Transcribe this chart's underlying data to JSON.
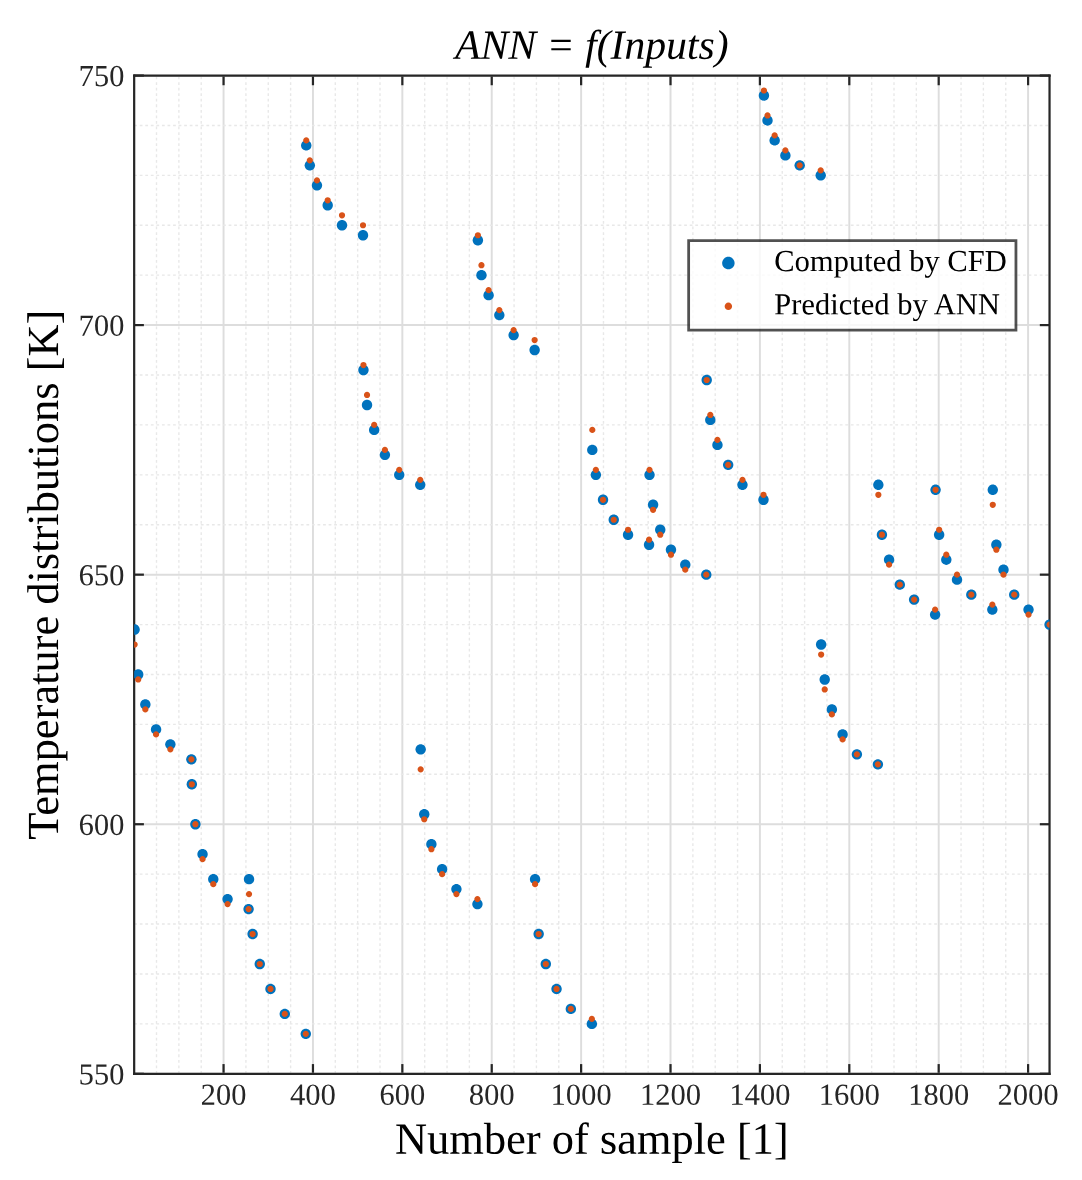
{
  "chart_data": {
    "type": "scatter",
    "title": "ANN = f(Inputs)",
    "xlabel": "Number of sample [1]",
    "ylabel": "Temperature distributions [K]",
    "x": [
      1,
      9,
      25,
      49,
      81,
      128,
      129,
      137,
      153,
      177,
      209,
      256,
      257,
      265,
      281,
      305,
      337,
      384,
      385,
      393,
      409,
      433,
      465,
      512,
      513,
      521,
      537,
      561,
      593,
      640,
      641,
      649,
      665,
      689,
      721,
      768,
      769,
      777,
      793,
      817,
      849,
      896,
      897,
      905,
      921,
      945,
      977,
      1024,
      1025,
      1033,
      1049,
      1073,
      1105,
      1152,
      1153,
      1161,
      1177,
      1201,
      1233,
      1280,
      1281,
      1289,
      1305,
      1329,
      1361,
      1408,
      1409,
      1417,
      1433,
      1457,
      1489,
      1536,
      1537,
      1545,
      1561,
      1585,
      1617,
      1664,
      1665,
      1673,
      1689,
      1713,
      1745,
      1792,
      1793,
      1801,
      1817,
      1841,
      1873,
      1920,
      1921,
      1929,
      1945,
      1969,
      2001,
      2048
    ],
    "series": [
      {
        "name": "Computed by CFD",
        "color": "#0072bd",
        "marker": "circle",
        "values": [
          639,
          630,
          624,
          619,
          616,
          613,
          608,
          600,
          594,
          589,
          585,
          583,
          589,
          578,
          572,
          567,
          562,
          558,
          736,
          732,
          728,
          724,
          720,
          718,
          691,
          684,
          679,
          674,
          670,
          668,
          615,
          602,
          596,
          591,
          587,
          584,
          717,
          710,
          706,
          702,
          698,
          695,
          589,
          578,
          572,
          567,
          563,
          560,
          675,
          670,
          665,
          661,
          658,
          656,
          670,
          664,
          659,
          655,
          652,
          650,
          689,
          681,
          676,
          672,
          668,
          665,
          746,
          741,
          737,
          734,
          732,
          730,
          636,
          629,
          623,
          618,
          614,
          612,
          668,
          658,
          653,
          648,
          645,
          642,
          667,
          658,
          653,
          649,
          646,
          643,
          667,
          656,
          651,
          646,
          643,
          640
        ]
      },
      {
        "name": "Predicted by ANN",
        "color": "#d95319",
        "marker": "circle",
        "values": [
          636,
          629,
          623,
          618,
          615,
          613,
          608,
          600,
          593,
          588,
          584,
          583,
          586,
          578,
          572,
          567,
          562,
          558,
          737,
          733,
          729,
          725,
          722,
          720,
          692,
          686,
          680,
          675,
          671,
          669,
          611,
          601,
          595,
          590,
          586,
          585,
          718,
          712,
          707,
          703,
          699,
          697,
          588,
          578,
          572,
          567,
          563,
          561,
          679,
          671,
          665,
          661,
          659,
          657,
          671,
          663,
          658,
          654,
          651,
          650,
          689,
          682,
          677,
          672,
          669,
          666,
          747,
          742,
          738,
          735,
          732,
          731,
          634,
          627,
          622,
          617,
          614,
          612,
          666,
          658,
          652,
          648,
          645,
          643,
          667,
          659,
          654,
          650,
          646,
          644,
          664,
          655,
          650,
          646,
          642,
          640
        ]
      }
    ],
    "xlim": [
      0,
      2048
    ],
    "ylim": [
      550,
      750
    ],
    "xticks": [
      200,
      400,
      600,
      800,
      1000,
      1200,
      1400,
      1600,
      1800,
      2000
    ],
    "yticks": [
      550,
      600,
      650,
      700,
      750
    ],
    "grid": true,
    "legend": "top right"
  }
}
